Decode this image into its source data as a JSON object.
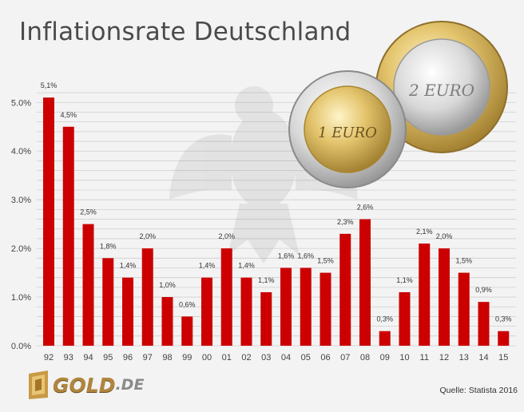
{
  "title": "Inflationsrate Deutschland",
  "source": "Quelle: Statista 2016",
  "logo": {
    "brand": "GOLD",
    "tld": ".DE"
  },
  "coins": {
    "coin_1": "1 EURO",
    "coin_2": "2 EURO"
  },
  "colors": {
    "bar": "#cc0000",
    "grid": "#cfcfcf",
    "background": "#f3f3f3"
  },
  "chart_data": {
    "type": "bar",
    "title": "Inflationsrate Deutschland",
    "xlabel": "",
    "ylabel": "",
    "ylim": [
      0,
      5.3
    ],
    "yticks": [
      "0.0%",
      "1.0%",
      "2.0%",
      "3.0%",
      "4.0%",
      "5.0%"
    ],
    "ytick_values": [
      0,
      1,
      2,
      3,
      4,
      5
    ],
    "grid": true,
    "categories": [
      "92",
      "93",
      "94",
      "95",
      "96",
      "97",
      "98",
      "99",
      "00",
      "01",
      "02",
      "03",
      "04",
      "05",
      "06",
      "07",
      "08",
      "09",
      "10",
      "11",
      "12",
      "13",
      "14",
      "15"
    ],
    "values": [
      5.1,
      4.5,
      2.5,
      1.8,
      1.4,
      2.0,
      1.0,
      0.6,
      1.4,
      2.0,
      1.4,
      1.1,
      1.6,
      1.6,
      1.5,
      2.3,
      2.6,
      0.3,
      1.1,
      2.1,
      2.0,
      1.5,
      0.9,
      0.3
    ],
    "data_labels": [
      "5,1%",
      "4,5%",
      "2,5%",
      "1,8%",
      "1,4%",
      "2,0%",
      "1,0%",
      "0,6%",
      "1,4%",
      "2,0%",
      "1,4%",
      "1,1%",
      "1,6%",
      "1,6%",
      "1,5%",
      "2,3%",
      "2,6%",
      "0,3%",
      "1,1%",
      "2,1%",
      "2,0%",
      "1,5%",
      "0,9%",
      "0,3%"
    ]
  }
}
